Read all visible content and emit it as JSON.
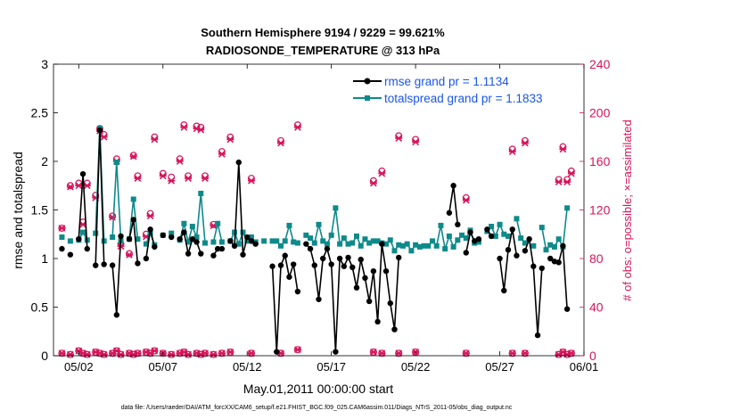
{
  "figure": {
    "title_line1": "Southern Hemisphere 9194 / 9229 = 99.621%",
    "title_line2": "RADIOSONDE_TEMPERATURE @ 313 hPa",
    "footer": "data file: /Users/raeder/DAI/ATM_forcXX/CAM6_setup/f.e21.FHIST_BGC.f09_025.CAM6assim.011/Diags_NTrS_2011-05/obs_diag_output.nc"
  },
  "colors": {
    "rmse": "#000000",
    "spread": "#0e8a8a",
    "obs": "#d6145a",
    "legend_text": "#1a55e6"
  },
  "chart_data": {
    "type": "line",
    "x_start_day": 1,
    "x_step_days": 0.25,
    "xlim": [
      0.5,
      32
    ],
    "xlabel": "May.01,2011 00:00:00 start",
    "ylabel_left": "rmse and totalspread",
    "ylabel_right": "# of obs: o=possible; ×=assimilated",
    "ylim_left": [
      0,
      3
    ],
    "ylim_right": [
      0,
      240
    ],
    "x_ticks": [
      {
        "day": 2,
        "label": "05/02"
      },
      {
        "day": 7,
        "label": "05/07"
      },
      {
        "day": 12,
        "label": "05/12"
      },
      {
        "day": 17,
        "label": "05/17"
      },
      {
        "day": 22,
        "label": "05/22"
      },
      {
        "day": 27,
        "label": "05/27"
      },
      {
        "day": 32,
        "label": "06/01"
      }
    ],
    "y_ticks_left": [
      "0",
      "0.5",
      "1",
      "1.5",
      "2",
      "2.5",
      "3"
    ],
    "y_ticks_right": [
      "0",
      "40",
      "80",
      "120",
      "160",
      "200",
      "240"
    ],
    "legend_placement": "top-right",
    "series": [
      {
        "name": "rmse grand pr = 1.1134",
        "axis": "left",
        "values": [
          1.1,
          null,
          1.04,
          null,
          1.2,
          1.87,
          1.1,
          null,
          0.93,
          2.32,
          0.94,
          null,
          0.93,
          0.42,
          1.23,
          null,
          1.2,
          1.4,
          0.95,
          null,
          1.0,
          1.3,
          1.12,
          null,
          1.24,
          null,
          1.22,
          null,
          1.2,
          1.27,
          1.05,
          1.2,
          1.17,
          1.05,
          null,
          null,
          1.03,
          1.1,
          1.1,
          null,
          1.18,
          1.13,
          1.99,
          1.04,
          1.22,
          1.18,
          1.15,
          null,
          null,
          null,
          0.92,
          0.04,
          0.93,
          1.03,
          0.81,
          0.94,
          0.66,
          null,
          1.15,
          1.1,
          0.93,
          0.58,
          1.0,
          1.1,
          0.94,
          0.04,
          1.0,
          0.92,
          1.01,
          0.91,
          0.7,
          0.99,
          0.8,
          0.56,
          0.87,
          0.35,
          1.15,
          0.87,
          0.54,
          0.27,
          1.01,
          null,
          null,
          null,
          null,
          null,
          null,
          null,
          null,
          null,
          null,
          null,
          1.47,
          1.75,
          1.35,
          null,
          1.06,
          1.27,
          1.18,
          1.2,
          null,
          1.3,
          1.23,
          null,
          1.0,
          0.67,
          1.09,
          1.3,
          1.03,
          null,
          1.08,
          1.2,
          0.92,
          0.21,
          0.9,
          null,
          1.0,
          0.97,
          0.96,
          1.13,
          0.48
        ]
      },
      {
        "name": "totalspread grand pr = 1.1833",
        "axis": "left",
        "values": [
          1.22,
          null,
          1.18,
          null,
          1.19,
          1.27,
          1.19,
          null,
          1.26,
          2.34,
          1.18,
          null,
          1.22,
          1.99,
          1.18,
          null,
          1.2,
          1.61,
          1.2,
          null,
          1.15,
          1.26,
          1.14,
          null,
          1.24,
          null,
          1.26,
          null,
          1.19,
          1.36,
          1.17,
          1.33,
          1.22,
          1.67,
          1.16,
          null,
          1.17,
          1.36,
          1.17,
          null,
          1.18,
          1.27,
          1.15,
          1.27,
          1.18,
          1.22,
          1.17,
          null,
          1.18,
          null,
          1.18,
          1.18,
          1.13,
          1.18,
          1.34,
          1.17,
          1.16,
          null,
          1.24,
          1.21,
          1.16,
          1.35,
          1.18,
          1.15,
          1.24,
          1.52,
          1.15,
          1.21,
          1.15,
          1.16,
          1.23,
          1.13,
          1.2,
          1.16,
          1.18,
          1.18,
          1.16,
          1.15,
          1.19,
          1.08,
          1.14,
          1.13,
          1.15,
          1.08,
          1.14,
          1.12,
          1.13,
          1.13,
          1.18,
          1.13,
          1.34,
          1.1,
          1.23,
          1.12,
          1.19,
          1.24,
          1.21,
          1.29,
          1.16,
          1.17,
          null,
          1.28,
          1.33,
          1.23,
          1.35,
          1.25,
          1.23,
          null,
          1.41,
          1.21,
          1.16,
          null,
          1.13,
          null,
          1.32,
          1.09,
          1.14,
          1.12,
          1.2,
          1.12,
          1.52
        ]
      }
    ],
    "obs_possible": [
      105,
      null,
      140,
      null,
      142,
      110,
      142,
      null,
      132,
      187,
      182,
      null,
      115,
      162,
      92,
      null,
      84,
      165,
      148,
      null,
      100,
      117,
      180,
      null,
      150,
      null,
      147,
      null,
      162,
      190,
      148,
      null,
      189,
      188,
      148,
      null,
      108,
      null,
      168,
      null,
      180,
      null,
      null,
      null,
      null,
      146,
      null,
      null,
      null,
      null,
      null,
      null,
      177,
      null,
      null,
      null,
      190,
      null,
      null,
      null,
      null,
      null,
      null,
      null,
      null,
      null,
      null,
      null,
      null,
      null,
      null,
      null,
      null,
      null,
      144,
      null,
      152,
      null,
      null,
      null,
      181,
      null,
      null,
      null,
      178,
      null,
      null,
      null,
      null,
      null,
      null,
      null,
      null,
      null,
      null,
      null,
      130,
      null,
      null,
      null,
      null,
      null,
      null,
      null,
      null,
      null,
      null,
      170,
      null,
      null,
      177,
      null,
      null,
      null,
      null,
      null,
      null,
      null,
      145,
      172,
      145,
      152
    ],
    "obs_assimilated": [
      105,
      null,
      139,
      null,
      140,
      108,
      140,
      null,
      130,
      185,
      180,
      null,
      114,
      160,
      90,
      null,
      83,
      164,
      146,
      null,
      98,
      115,
      178,
      null,
      148,
      null,
      144,
      null,
      160,
      188,
      146,
      null,
      187,
      186,
      146,
      null,
      107,
      null,
      166,
      null,
      178,
      null,
      null,
      null,
      null,
      144,
      null,
      null,
      null,
      null,
      null,
      null,
      175,
      null,
      null,
      null,
      188,
      null,
      null,
      null,
      null,
      null,
      null,
      null,
      null,
      null,
      null,
      null,
      null,
      null,
      null,
      null,
      null,
      null,
      142,
      null,
      150,
      null,
      null,
      null,
      179,
      null,
      null,
      null,
      176,
      null,
      null,
      null,
      null,
      null,
      null,
      null,
      null,
      null,
      null,
      null,
      128,
      null,
      null,
      null,
      null,
      null,
      null,
      null,
      null,
      null,
      null,
      168,
      null,
      null,
      175,
      null,
      null,
      null,
      null,
      null,
      null,
      null,
      143,
      170,
      143,
      150
    ],
    "obs_possible_low": [
      2,
      null,
      1,
      null,
      4,
      2,
      1,
      null,
      3,
      2,
      1,
      null,
      2,
      4,
      1,
      null,
      2,
      1,
      2,
      null,
      3,
      2,
      4,
      null,
      2,
      null,
      1,
      null,
      2,
      3,
      1,
      null,
      2,
      1,
      2,
      null,
      1,
      null,
      2,
      null,
      3,
      null,
      null,
      null,
      null,
      2,
      null,
      null,
      null,
      null,
      null,
      null,
      2,
      null,
      null,
      null,
      5,
      null,
      null,
      null,
      null,
      null,
      null,
      null,
      null,
      null,
      null,
      null,
      null,
      null,
      null,
      null,
      null,
      null,
      3,
      null,
      2,
      null,
      null,
      null,
      2,
      null,
      null,
      null,
      3,
      null,
      null,
      null,
      null,
      null,
      null,
      null,
      null,
      null,
      null,
      null,
      2,
      null,
      null,
      null,
      null,
      null,
      null,
      null,
      null,
      null,
      null,
      2,
      null,
      null,
      2,
      null,
      null,
      null,
      null,
      null,
      null,
      null,
      1,
      3,
      1,
      2
    ]
  }
}
